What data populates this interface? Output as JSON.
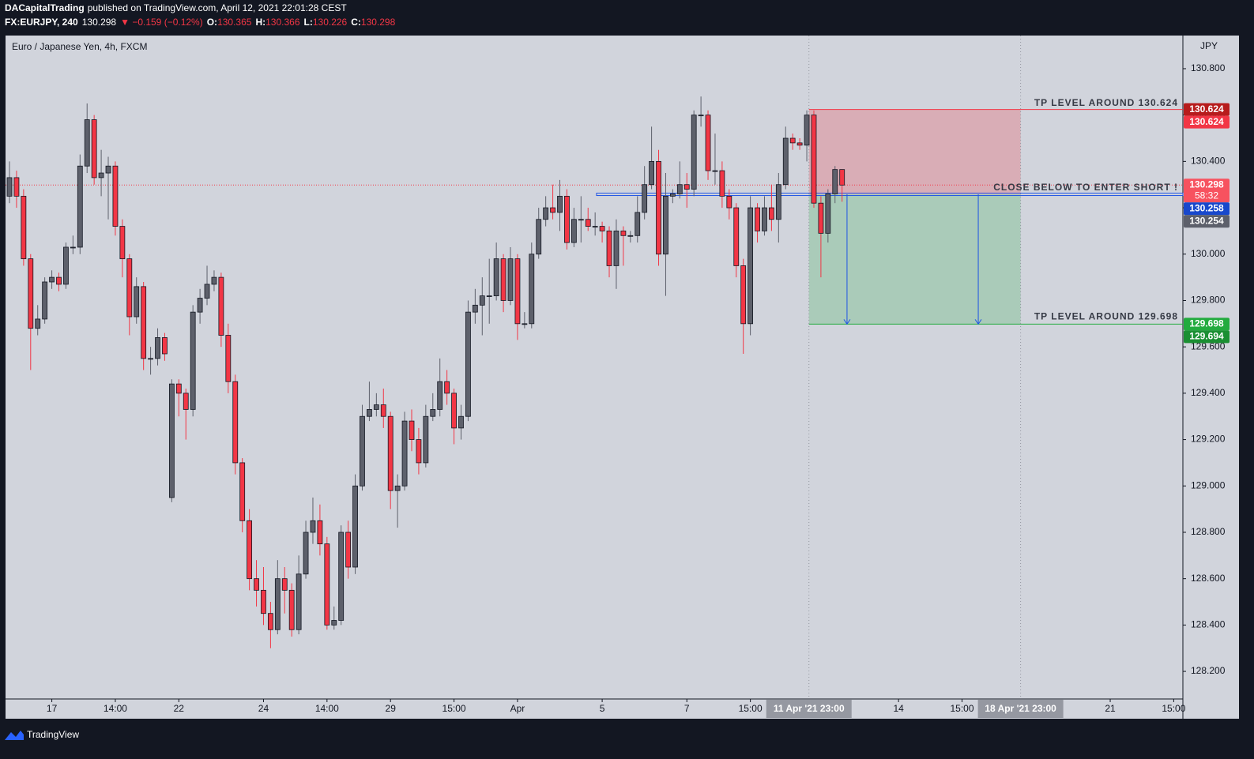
{
  "header": {
    "author": "DACapitalTrading",
    "published": "published on TradingView.com, April 12, 2021 22:01:28 CEST",
    "symbol": "FX:EURJPY, 240",
    "price": "130.298",
    "change": "▼ −0.159 (−0.12%)",
    "ohlc": [
      {
        "label": "O:",
        "value": "130.365"
      },
      {
        "label": "H:",
        "value": "130.366"
      },
      {
        "label": "L:",
        "value": "130.226"
      },
      {
        "label": "C:",
        "value": "130.298"
      }
    ]
  },
  "chart_data": {
    "type": "candlestick",
    "title": "Euro / Japanese Yen, 4h, FXCM",
    "currency": "JPY",
    "up_color": "#5d606b",
    "down_color": "#f23645",
    "xlim": [
      -0.56,
      166.3
    ],
    "ylim": [
      128.081,
      130.943
    ],
    "yticks": [
      {
        "value": 128.2,
        "label": "128.200"
      },
      {
        "value": 128.4,
        "label": "128.400"
      },
      {
        "value": 128.6,
        "label": "128.600"
      },
      {
        "value": 128.8,
        "label": "128.800"
      },
      {
        "value": 129.0,
        "label": "129.000"
      },
      {
        "value": 129.2,
        "label": "129.200"
      },
      {
        "value": 129.4,
        "label": "129.400"
      },
      {
        "value": 129.6,
        "label": "129.600"
      },
      {
        "value": 129.8,
        "label": "129.800"
      },
      {
        "value": 130.0,
        "label": "130.000"
      },
      {
        "value": 130.2,
        "label": "130.200"
      },
      {
        "value": 130.4,
        "label": "130.400"
      },
      {
        "value": 130.6,
        "label": "130.600"
      },
      {
        "value": 130.8,
        "label": "130.800"
      }
    ],
    "xticks": [
      {
        "value": 6,
        "label": "17"
      },
      {
        "value": 15,
        "label": "14:00"
      },
      {
        "value": 24,
        "label": "22"
      },
      {
        "value": 36,
        "label": "24"
      },
      {
        "value": 45,
        "label": "14:00"
      },
      {
        "value": 54,
        "label": "29"
      },
      {
        "value": 63,
        "label": "15:00"
      },
      {
        "value": 72,
        "label": "Apr"
      },
      {
        "value": 84,
        "label": "5"
      },
      {
        "value": 96,
        "label": "7"
      },
      {
        "value": 105,
        "label": "15:00"
      },
      {
        "value": 126,
        "label": "14"
      },
      {
        "value": 135,
        "label": "15:00"
      },
      {
        "value": 156,
        "label": "21"
      },
      {
        "value": 165,
        "label": "15:00"
      }
    ],
    "xmarkers": [
      {
        "value": 113.3,
        "label": "11 Apr '21  23:00"
      },
      {
        "value": 143.3,
        "label": "18 Apr '21  23:00"
      }
    ],
    "ohlc": [
      [
        130.25,
        130.4,
        130.22,
        130.33
      ],
      [
        130.33,
        130.36,
        130.2,
        130.25
      ],
      [
        130.25,
        130.28,
        129.95,
        129.98
      ],
      [
        129.98,
        130.0,
        129.5,
        129.68
      ],
      [
        129.68,
        129.78,
        129.65,
        129.72
      ],
      [
        129.72,
        129.9,
        129.7,
        129.88
      ],
      [
        129.88,
        129.93,
        129.85,
        129.9
      ],
      [
        129.9,
        129.92,
        129.84,
        129.87
      ],
      [
        129.87,
        130.05,
        129.85,
        130.03
      ],
      [
        130.03,
        130.08,
        130.0,
        130.03
      ],
      [
        130.03,
        130.43,
        130.0,
        130.38
      ],
      [
        130.38,
        130.65,
        130.35,
        130.58
      ],
      [
        130.58,
        130.6,
        130.3,
        130.33
      ],
      [
        130.33,
        130.45,
        130.25,
        130.35
      ],
      [
        130.35,
        130.42,
        130.15,
        130.38
      ],
      [
        130.38,
        130.4,
        130.08,
        130.12
      ],
      [
        130.12,
        130.15,
        129.9,
        129.98
      ],
      [
        129.98,
        130.0,
        129.65,
        129.73
      ],
      [
        129.73,
        129.9,
        129.7,
        129.86
      ],
      [
        129.86,
        129.88,
        129.5,
        129.55
      ],
      [
        129.55,
        129.6,
        129.48,
        129.55
      ],
      [
        129.55,
        129.68,
        129.52,
        129.64
      ],
      [
        129.64,
        129.66,
        129.54,
        129.57
      ],
      [
        128.95,
        129.46,
        128.93,
        129.44
      ],
      [
        129.44,
        129.46,
        129.3,
        129.4
      ],
      [
        129.4,
        129.42,
        129.2,
        129.33
      ],
      [
        129.33,
        129.78,
        129.3,
        129.75
      ],
      [
        129.75,
        129.85,
        129.7,
        129.81
      ],
      [
        129.81,
        129.95,
        129.78,
        129.87
      ],
      [
        129.87,
        129.93,
        129.84,
        129.9
      ],
      [
        129.9,
        129.92,
        129.6,
        129.65
      ],
      [
        129.65,
        129.7,
        129.4,
        129.45
      ],
      [
        129.45,
        129.48,
        129.05,
        129.1
      ],
      [
        129.1,
        129.12,
        128.8,
        128.85
      ],
      [
        128.85,
        128.9,
        128.55,
        128.6
      ],
      [
        128.6,
        128.68,
        128.48,
        128.55
      ],
      [
        128.55,
        128.65,
        128.4,
        128.45
      ],
      [
        128.45,
        128.5,
        128.3,
        128.38
      ],
      [
        128.38,
        128.68,
        128.36,
        128.6
      ],
      [
        128.6,
        128.65,
        128.45,
        128.55
      ],
      [
        128.55,
        128.58,
        128.35,
        128.38
      ],
      [
        128.38,
        128.7,
        128.36,
        128.62
      ],
      [
        128.62,
        128.85,
        128.6,
        128.8
      ],
      [
        128.8,
        128.95,
        128.75,
        128.85
      ],
      [
        128.85,
        128.92,
        128.7,
        128.75
      ],
      [
        128.75,
        128.78,
        128.38,
        128.4
      ],
      [
        128.4,
        128.48,
        128.38,
        128.42
      ],
      [
        128.42,
        128.83,
        128.4,
        128.8
      ],
      [
        128.8,
        128.85,
        128.6,
        128.65
      ],
      [
        128.65,
        129.05,
        128.62,
        129.0
      ],
      [
        129.0,
        129.35,
        128.98,
        129.3
      ],
      [
        129.3,
        129.45,
        129.28,
        129.33
      ],
      [
        129.33,
        129.4,
        129.3,
        129.35
      ],
      [
        129.35,
        129.42,
        129.25,
        129.3
      ],
      [
        129.3,
        129.32,
        128.9,
        128.98
      ],
      [
        128.98,
        129.05,
        128.82,
        129.0
      ],
      [
        129.0,
        129.32,
        128.98,
        129.28
      ],
      [
        129.28,
        129.33,
        129.15,
        129.2
      ],
      [
        129.2,
        129.25,
        129.05,
        129.1
      ],
      [
        129.1,
        129.35,
        129.08,
        129.3
      ],
      [
        129.3,
        129.4,
        129.28,
        129.33
      ],
      [
        129.33,
        129.55,
        129.3,
        129.45
      ],
      [
        129.45,
        129.5,
        129.35,
        129.4
      ],
      [
        129.4,
        129.42,
        129.18,
        129.25
      ],
      [
        129.25,
        129.35,
        129.2,
        129.3
      ],
      [
        129.3,
        129.8,
        129.28,
        129.75
      ],
      [
        129.75,
        129.85,
        129.7,
        129.78
      ],
      [
        129.78,
        129.9,
        129.65,
        129.82
      ],
      [
        129.82,
        129.98,
        129.7,
        129.82
      ],
      [
        129.82,
        130.05,
        129.8,
        129.98
      ],
      [
        129.98,
        130.0,
        129.75,
        129.8
      ],
      [
        129.8,
        130.03,
        129.78,
        129.98
      ],
      [
        129.98,
        130.0,
        129.63,
        129.7
      ],
      [
        129.7,
        129.75,
        129.68,
        129.7
      ],
      [
        129.7,
        130.05,
        129.68,
        130.0
      ],
      [
        130.0,
        130.2,
        129.98,
        130.15
      ],
      [
        130.15,
        130.25,
        130.12,
        130.2
      ],
      [
        130.2,
        130.3,
        130.15,
        130.18
      ],
      [
        130.18,
        130.32,
        130.1,
        130.25
      ],
      [
        130.25,
        130.28,
        130.02,
        130.05
      ],
      [
        130.05,
        130.2,
        130.03,
        130.15
      ],
      [
        130.15,
        130.25,
        130.05,
        130.15
      ],
      [
        130.15,
        130.2,
        130.1,
        130.12
      ],
      [
        130.12,
        130.18,
        130.08,
        130.12
      ],
      [
        130.12,
        130.14,
        130.05,
        130.1
      ],
      [
        130.1,
        130.12,
        129.9,
        129.95
      ],
      [
        129.95,
        130.15,
        129.85,
        130.1
      ],
      [
        130.1,
        130.12,
        129.95,
        130.08
      ],
      [
        130.08,
        130.1,
        130.05,
        130.08
      ],
      [
        130.08,
        130.25,
        130.05,
        130.18
      ],
      [
        130.18,
        130.38,
        130.15,
        130.3
      ],
      [
        130.3,
        130.55,
        130.28,
        130.4
      ],
      [
        130.4,
        130.45,
        129.95,
        130.0
      ],
      [
        130.0,
        130.35,
        129.82,
        130.25
      ],
      [
        130.25,
        130.28,
        130.22,
        130.26
      ],
      [
        130.26,
        130.4,
        130.24,
        130.3
      ],
      [
        130.3,
        130.35,
        130.2,
        130.28
      ],
      [
        130.28,
        130.62,
        130.25,
        130.6
      ],
      [
        130.6,
        130.68,
        130.55,
        130.6
      ],
      [
        130.6,
        130.62,
        130.32,
        130.36
      ],
      [
        130.36,
        130.52,
        130.3,
        130.36
      ],
      [
        130.36,
        130.4,
        130.2,
        130.25
      ],
      [
        130.25,
        130.28,
        130.15,
        130.2
      ],
      [
        130.2,
        130.22,
        129.9,
        129.95
      ],
      [
        129.95,
        129.98,
        129.57,
        129.7
      ],
      [
        129.7,
        130.25,
        129.65,
        130.2
      ],
      [
        130.2,
        130.22,
        130.05,
        130.1
      ],
      [
        130.1,
        130.25,
        130.08,
        130.2
      ],
      [
        130.2,
        130.3,
        130.1,
        130.15
      ],
      [
        130.15,
        130.35,
        130.05,
        130.3
      ],
      [
        130.3,
        130.55,
        130.28,
        130.5
      ],
      [
        130.5,
        130.52,
        130.45,
        130.48
      ],
      [
        130.48,
        130.5,
        130.45,
        130.47
      ],
      [
        130.47,
        130.62,
        130.4,
        130.6
      ],
      [
        130.6,
        130.62,
        130.2,
        130.22
      ],
      [
        130.22,
        130.25,
        129.9,
        130.09
      ],
      [
        130.09,
        130.28,
        130.05,
        130.26
      ],
      [
        130.26,
        130.38,
        130.22,
        130.365
      ],
      [
        130.365,
        130.366,
        130.226,
        130.298
      ]
    ],
    "current_price": 130.298,
    "entry_line": {
      "value": 130.258,
      "start": 83.2,
      "color": "#1e53e5"
    },
    "position": {
      "start": 113.3,
      "end": 143.3,
      "stop": 130.624,
      "entry": 130.258,
      "target": 129.698,
      "stop_label": "TP LEVEL AROUND 130.624",
      "entry_label": "CLOSE BELOW TO ENTER SHORT !",
      "target_label": "TP LEVEL AROUND 129.698"
    },
    "price_tags": [
      {
        "value": 130.624,
        "label": "130.624",
        "color": "#b71c1c"
      },
      {
        "value": 130.624,
        "label": "130.624",
        "color": "#f23645"
      },
      {
        "value": 130.298,
        "label": "130.298",
        "countdown": "58:32",
        "color": "#f7525f"
      },
      {
        "value": 130.258,
        "label": "130.258",
        "color": "#1848cc"
      },
      {
        "value": 130.254,
        "label": "130.254",
        "color": "#5d606b"
      },
      {
        "value": 129.698,
        "label": "129.698",
        "color": "#22ab3e"
      },
      {
        "value": 129.694,
        "label": "129.694",
        "color": "#1b8f33"
      }
    ]
  },
  "footer": {
    "brand": "TradingView"
  }
}
